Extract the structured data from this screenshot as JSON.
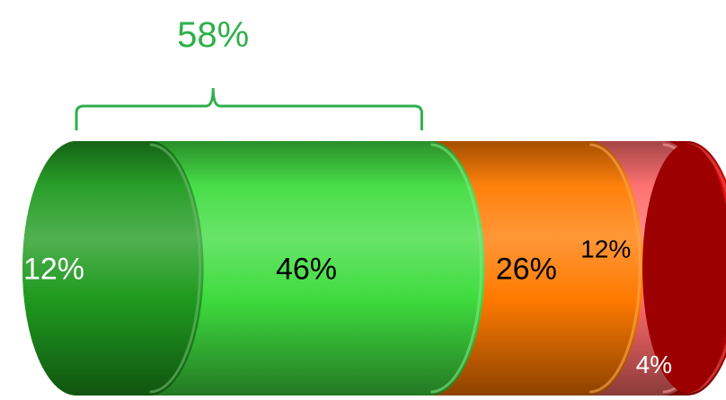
{
  "chart_data": {
    "type": "bar",
    "orientation": "horizontal-stacked-cylinder",
    "categories": [
      "segment-1",
      "segment-2",
      "segment-3",
      "segment-4",
      "segment-5"
    ],
    "values": [
      12,
      46,
      26,
      12,
      4
    ],
    "labels": [
      "12%",
      "46%",
      "26%",
      "12%",
      "4%"
    ],
    "colors": [
      "#1f9a1f",
      "#3fdc3f",
      "#ff7a00",
      "#ff6b6b",
      "#e00000"
    ],
    "label_colors": [
      "#ffffff",
      "#000000",
      "#000000",
      "#000000",
      "#ffffff"
    ],
    "bracket": {
      "covers_segments": [
        0,
        1
      ],
      "label": "58%",
      "color": "#2fb04a"
    },
    "legend": false,
    "grid": false
  }
}
